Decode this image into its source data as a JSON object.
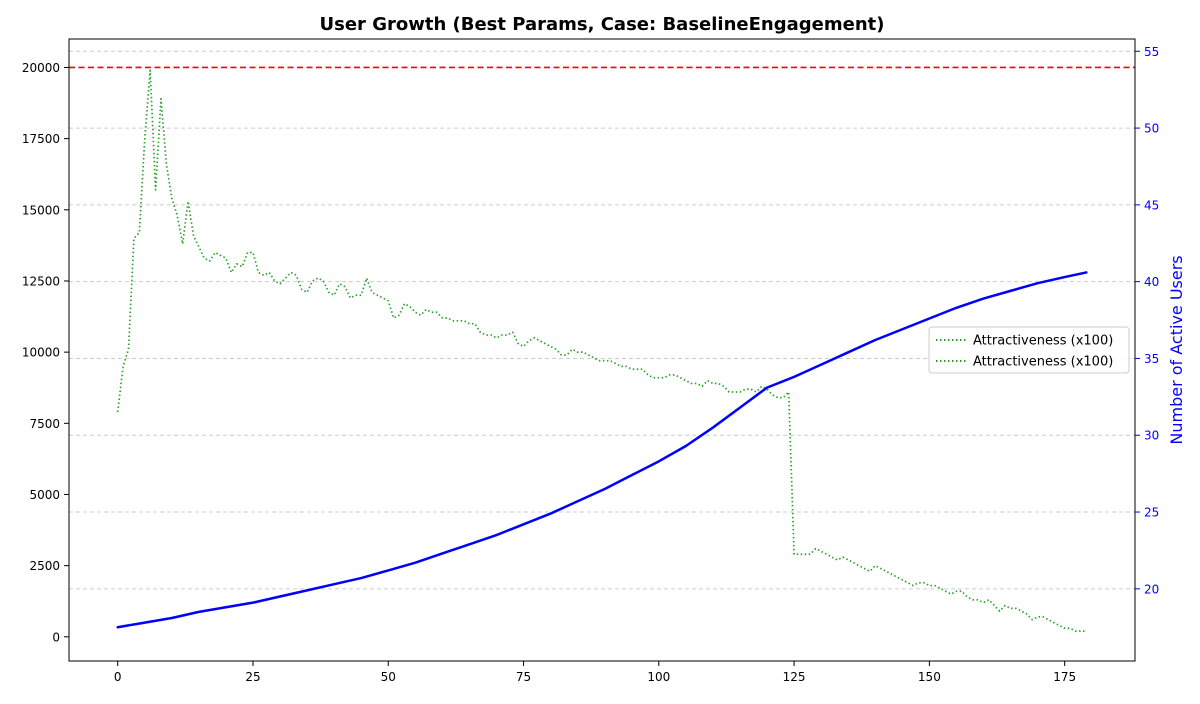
{
  "chart_data": {
    "type": "line",
    "title": "User Growth (Best Params, Case: BaselineEngagement)",
    "xlabel": "",
    "ylabel_left": "",
    "ylabel_right": "Number of Active Users",
    "xlim": [
      -9,
      188
    ],
    "ylim_left": [
      -850,
      21000
    ],
    "ylim_right": [
      15.3,
      55.8
    ],
    "x_ticks": [
      0,
      25,
      50,
      75,
      100,
      125,
      150,
      175
    ],
    "y_left_ticks": [
      0,
      2500,
      5000,
      7500,
      10000,
      12500,
      15000,
      17500,
      20000
    ],
    "y_right_ticks": [
      20,
      25,
      30,
      35,
      40,
      45,
      50,
      55
    ],
    "grid": "horizontal dashed",
    "legend_position": "center-right",
    "reference_line": {
      "axis": "left",
      "value": 20000,
      "color": "#ff0000",
      "style": "dashed"
    },
    "series": [
      {
        "name": "Attractiveness (x100)",
        "axis": "left",
        "color": "#2ca02c",
        "style": "dotted",
        "x": [
          0,
          1,
          2,
          3,
          4,
          5,
          6,
          7,
          8,
          9,
          10,
          11,
          12,
          13,
          14,
          15,
          16,
          17,
          18,
          19,
          20,
          21,
          22,
          23,
          24,
          25,
          26,
          27,
          28,
          29,
          30,
          31,
          32,
          33,
          34,
          35,
          36,
          37,
          38,
          39,
          40,
          41,
          42,
          43,
          44,
          45,
          46,
          47,
          48,
          49,
          50,
          51,
          52,
          53,
          54,
          55,
          56,
          57,
          58,
          59,
          60,
          61,
          62,
          63,
          64,
          65,
          66,
          67,
          68,
          69,
          70,
          71,
          72,
          73,
          74,
          75,
          76,
          77,
          78,
          79,
          80,
          81,
          82,
          83,
          84,
          85,
          86,
          87,
          88,
          89,
          90,
          91,
          92,
          93,
          94,
          95,
          96,
          97,
          98,
          99,
          100,
          101,
          102,
          103,
          104,
          105,
          106,
          107,
          108,
          109,
          110,
          111,
          112,
          113,
          114,
          115,
          116,
          117,
          118,
          119,
          120,
          121,
          122,
          123,
          124,
          125,
          126,
          127,
          128,
          129,
          130,
          131,
          132,
          133,
          134,
          135,
          136,
          137,
          138,
          139,
          140,
          141,
          142,
          143,
          144,
          145,
          146,
          147,
          148,
          149,
          150,
          151,
          152,
          153,
          154,
          155,
          156,
          157,
          158,
          159,
          160,
          161,
          162,
          163,
          164,
          165,
          166,
          167,
          168,
          169,
          170,
          171,
          172,
          173,
          174,
          175,
          176,
          177,
          178,
          179
        ],
        "values": [
          7900,
          9500,
          10100,
          14000,
          14200,
          17500,
          19900,
          15700,
          18900,
          16600,
          15400,
          14800,
          13800,
          15300,
          14100,
          13700,
          13300,
          13200,
          13500,
          13400,
          13300,
          12800,
          13100,
          13000,
          13500,
          13500,
          12800,
          12700,
          12800,
          12500,
          12400,
          12600,
          12800,
          12700,
          12200,
          12100,
          12500,
          12600,
          12500,
          12100,
          12000,
          12400,
          12300,
          11900,
          12000,
          12000,
          12600,
          12100,
          12000,
          11900,
          11800,
          11200,
          11300,
          11700,
          11600,
          11400,
          11300,
          11500,
          11400,
          11400,
          11200,
          11200,
          11100,
          11100,
          11100,
          11000,
          11000,
          10700,
          10600,
          10600,
          10500,
          10600,
          10600,
          10700,
          10300,
          10200,
          10400,
          10500,
          10400,
          10300,
          10200,
          10100,
          9900,
          9900,
          10100,
          10000,
          10000,
          9900,
          9800,
          9700,
          9700,
          9700,
          9600,
          9500,
          9500,
          9400,
          9400,
          9400,
          9200,
          9100,
          9100,
          9100,
          9200,
          9200,
          9100,
          9000,
          8900,
          8900,
          8800,
          9000,
          8900,
          8900,
          8800,
          8600,
          8600,
          8600,
          8700,
          8700,
          8600,
          8800,
          8700,
          8500,
          8400,
          8400,
          8600,
          2900,
          2900,
          2900,
          2900,
          3100,
          3000,
          2900,
          2800,
          2700,
          2800,
          2700,
          2600,
          2500,
          2400,
          2300,
          2500,
          2400,
          2300,
          2200,
          2100,
          2000,
          1900,
          1800,
          1900,
          1900,
          1800,
          1800,
          1700,
          1600,
          1500,
          1600,
          1600,
          1400,
          1300,
          1300,
          1200,
          1300,
          1100,
          900,
          1100,
          1000,
          1000,
          900,
          800,
          600,
          700,
          700,
          600,
          500,
          400,
          300,
          300,
          200,
          200,
          200
        ]
      },
      {
        "name": "",
        "axis": "right",
        "color": "#0000ff",
        "style": "solid",
        "x": [
          0,
          5,
          10,
          15,
          20,
          25,
          30,
          35,
          40,
          45,
          50,
          55,
          60,
          65,
          70,
          75,
          80,
          85,
          90,
          95,
          100,
          105,
          110,
          115,
          120,
          125,
          130,
          135,
          140,
          145,
          150,
          155,
          160,
          165,
          170,
          175,
          179
        ],
        "values": [
          17.5,
          17.8,
          18.1,
          18.5,
          18.8,
          19.1,
          19.5,
          19.9,
          20.3,
          20.7,
          21.2,
          21.7,
          22.3,
          22.9,
          23.5,
          24.2,
          24.9,
          25.7,
          26.5,
          27.4,
          28.3,
          29.3,
          30.5,
          31.8,
          33.1,
          33.8,
          34.6,
          35.4,
          36.2,
          36.9,
          37.6,
          38.3,
          38.9,
          39.4,
          39.9,
          40.3,
          40.6
        ]
      }
    ],
    "legend_entries": [
      {
        "label": "Attractiveness (x100)",
        "color": "#2ca02c",
        "style": "dotted"
      },
      {
        "label": "Attractiveness (x100)",
        "color": "#2ca02c",
        "style": "dotted"
      }
    ]
  }
}
